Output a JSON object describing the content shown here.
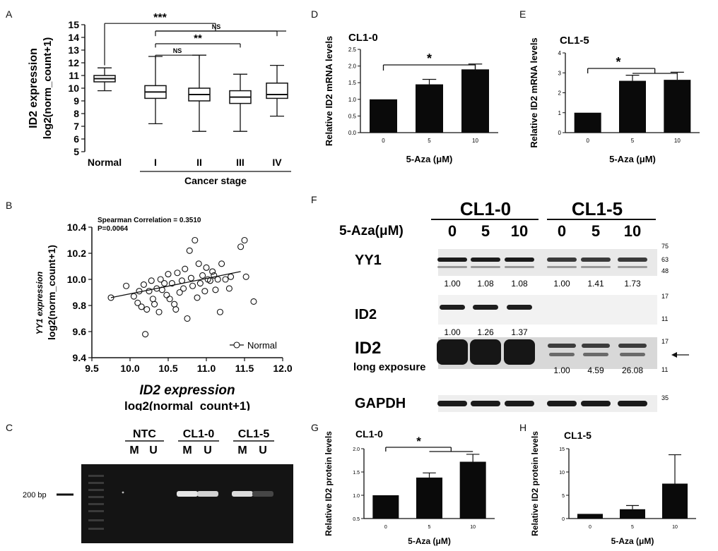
{
  "panel_letters": [
    "A",
    "B",
    "C",
    "D",
    "E",
    "F",
    "G",
    "H"
  ],
  "chart_data": [
    {
      "panel": "A",
      "type": "box",
      "categories": [
        "Normal",
        "I",
        "II",
        "III",
        "IV"
      ],
      "boxes": [
        {
          "min": 9.8,
          "q1": 10.5,
          "median": 10.75,
          "q3": 11.0,
          "max": 11.6
        },
        {
          "min": 7.2,
          "q1": 9.2,
          "median": 9.7,
          "q3": 10.2,
          "max": 12.5
        },
        {
          "min": 6.6,
          "q1": 9.0,
          "median": 9.5,
          "q3": 10.0,
          "max": 12.6
        },
        {
          "min": 6.6,
          "q1": 8.8,
          "median": 9.3,
          "q3": 9.8,
          "max": 11.1
        },
        {
          "min": 7.8,
          "q1": 9.2,
          "median": 9.5,
          "q3": 10.4,
          "max": 11.8
        }
      ],
      "ylabel_line1": "ID2 expression",
      "ylabel_line2": "log2(norm_count+1)",
      "xgroup_label": "Cancer stage",
      "ylim": [
        5,
        15
      ],
      "yticks": [
        5,
        6,
        7,
        8,
        9,
        10,
        11,
        12,
        13,
        14,
        15
      ],
      "sig": [
        "***",
        "NS",
        "**",
        "NS"
      ]
    },
    {
      "panel": "B",
      "type": "scatter",
      "annotation_line1": "Spearman Correlation = 0.3510",
      "annotation_line2": "P=0.0064",
      "legend": "Normal",
      "ylabel_line1": "YY1 expression",
      "ylabel_line2": "log2(norm_count+1)",
      "xlabel_line1": "ID2 expression",
      "xlabel_line2": "log2(normal_count+1)",
      "xlim": [
        9.5,
        12.0
      ],
      "ylim": [
        9.4,
        10.4
      ],
      "xticks": [
        "9.5",
        "10.0",
        "10.5",
        "11.0",
        "11.5",
        "12.0"
      ],
      "yticks": [
        "9.4",
        "9.6",
        "9.8",
        "10.0",
        "10.2",
        "10.4"
      ],
      "fit": [
        [
          9.75,
          9.86
        ],
        [
          11.45,
          10.06
        ]
      ],
      "points": [
        [
          9.75,
          9.86
        ],
        [
          9.95,
          9.95
        ],
        [
          10.05,
          9.87
        ],
        [
          10.1,
          9.82
        ],
        [
          10.12,
          9.91
        ],
        [
          10.15,
          9.79
        ],
        [
          10.18,
          9.96
        ],
        [
          10.2,
          9.58
        ],
        [
          10.22,
          9.77
        ],
        [
          10.25,
          9.91
        ],
        [
          10.28,
          9.99
        ],
        [
          10.3,
          9.85
        ],
        [
          10.32,
          9.81
        ],
        [
          10.35,
          9.93
        ],
        [
          10.38,
          9.75
        ],
        [
          10.4,
          10.0
        ],
        [
          10.42,
          9.92
        ],
        [
          10.45,
          9.97
        ],
        [
          10.48,
          9.88
        ],
        [
          10.5,
          10.04
        ],
        [
          10.52,
          9.85
        ],
        [
          10.55,
          9.97
        ],
        [
          10.58,
          9.81
        ],
        [
          10.6,
          9.77
        ],
        [
          10.62,
          10.05
        ],
        [
          10.65,
          9.9
        ],
        [
          10.68,
          9.99
        ],
        [
          10.7,
          9.93
        ],
        [
          10.72,
          10.08
        ],
        [
          10.75,
          9.7
        ],
        [
          10.78,
          10.22
        ],
        [
          10.8,
          10.01
        ],
        [
          10.82,
          9.95
        ],
        [
          10.85,
          10.3
        ],
        [
          10.88,
          9.86
        ],
        [
          10.9,
          10.12
        ],
        [
          10.92,
          9.97
        ],
        [
          10.95,
          10.03
        ],
        [
          10.98,
          9.91
        ],
        [
          11.0,
          10.09
        ],
        [
          11.02,
          10.0
        ],
        [
          11.05,
          9.99
        ],
        [
          11.08,
          10.06
        ],
        [
          11.1,
          10.03
        ],
        [
          11.12,
          9.92
        ],
        [
          11.15,
          10.0
        ],
        [
          11.18,
          9.75
        ],
        [
          11.2,
          10.12
        ],
        [
          11.25,
          10.0
        ],
        [
          11.3,
          9.93
        ],
        [
          11.32,
          10.02
        ],
        [
          11.45,
          10.25
        ],
        [
          11.5,
          10.3
        ],
        [
          11.52,
          10.02
        ],
        [
          11.62,
          9.83
        ]
      ]
    },
    {
      "panel": "D",
      "type": "bar",
      "title": "CL1-0",
      "categories": [
        "0",
        "5",
        "10"
      ],
      "values": [
        1.0,
        1.45,
        1.9
      ],
      "errors": [
        0,
        0.15,
        0.16
      ],
      "ylabel": "Relative ID2 mRNA levels",
      "xlabel": "5-Aza (μM)",
      "ylim": [
        0,
        2.5
      ],
      "yticks": [
        "0.0",
        "0.5",
        "1.0",
        "1.5",
        "2.0",
        "2.5"
      ],
      "sig": "*"
    },
    {
      "panel": "E",
      "type": "bar",
      "title": "CL1-5",
      "categories": [
        "0",
        "5",
        "10"
      ],
      "values": [
        1.0,
        2.6,
        2.65
      ],
      "errors": [
        0,
        0.28,
        0.38
      ],
      "ylabel": "Relative ID2 mRNA levels",
      "xlabel": "5-Aza (μM)",
      "ylim": [
        0,
        4
      ],
      "yticks": [
        "0",
        "1",
        "2",
        "3",
        "4"
      ],
      "sig": "*"
    },
    {
      "panel": "G",
      "type": "bar",
      "title": "CL1-0",
      "categories": [
        "0",
        "5",
        "10"
      ],
      "values": [
        1.0,
        1.38,
        1.72
      ],
      "errors": [
        0,
        0.1,
        0.16
      ],
      "ylabel": "Relative ID2 protein levels",
      "xlabel": "5-Aza (μM)",
      "ylim": [
        0.5,
        2.0
      ],
      "yticks": [
        "0.5",
        "1.0",
        "1.5",
        "2.0"
      ],
      "sig": "*"
    },
    {
      "panel": "H",
      "type": "bar",
      "title": "CL1-5",
      "categories": [
        "0",
        "5",
        "10"
      ],
      "values": [
        1.0,
        2.0,
        7.5
      ],
      "errors": [
        0,
        0.8,
        6.2
      ],
      "ylabel": "Relative ID2 protein levels",
      "xlabel": "5-Aza (μM)",
      "ylim": [
        0,
        15
      ],
      "yticks": [
        "0",
        "5",
        "10",
        "15"
      ],
      "sig": ""
    }
  ],
  "gel": {
    "groups": [
      "NTC",
      "CL1-0",
      "CL1-5"
    ],
    "lanes": [
      "M",
      "U",
      "M",
      "U",
      "M",
      "U"
    ],
    "marker": "200 bp",
    "band_intensity": [
      0,
      0,
      0.95,
      0.85,
      0.9,
      0.15
    ]
  },
  "blot": {
    "cell_lines": [
      "CL1-0",
      "CL1-5"
    ],
    "treatment_label": "5-Aza(μM)",
    "doses": [
      "0",
      "5",
      "10",
      "0",
      "5",
      "10"
    ],
    "rows": [
      {
        "name": "YY1",
        "mw": [
          "75",
          "63",
          "48"
        ],
        "values": [
          "1.00",
          "1.08",
          "1.08",
          "1.00",
          "1.41",
          "1.73"
        ]
      },
      {
        "name": "ID2",
        "mw": [
          "17",
          "11"
        ],
        "values": [
          "1.00",
          "1.26",
          "1.37",
          "",
          "",
          ""
        ]
      },
      {
        "name": "ID2",
        "sub": "long exposure",
        "mw": [
          "17",
          "11"
        ],
        "values": [
          "",
          "",
          "",
          "1.00",
          "4.59",
          "26.08"
        ]
      },
      {
        "name": "GAPDH",
        "mw": [
          "35"
        ]
      }
    ]
  }
}
